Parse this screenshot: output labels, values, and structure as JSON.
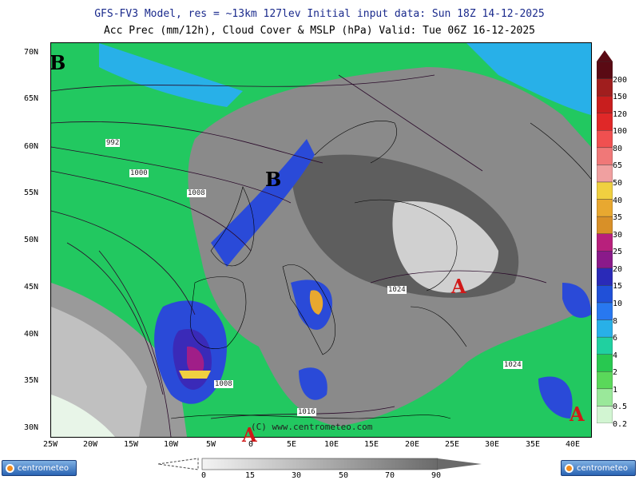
{
  "header": {
    "line1": "GFS-FV3 Model, res = ~13km 127lev   Initial input data: Sun 18Z 14-12-2025",
    "line2": "Acc Prec (mm/12h), Cloud Cover & MSLP (hPa)  Valid: Tue 06Z 16-12-2025"
  },
  "lat_labels": [
    "70N",
    "65N",
    "60N",
    "55N",
    "50N",
    "45N",
    "40N",
    "35N",
    "30N"
  ],
  "lon_labels": [
    "25W",
    "20W",
    "15W",
    "10W",
    "5W",
    "0",
    "5E",
    "10E",
    "15E",
    "20E",
    "25E",
    "30E",
    "35E",
    "40E"
  ],
  "precip_scale": {
    "labels": [
      "200",
      "150",
      "120",
      "100",
      "80",
      "65",
      "50",
      "40",
      "35",
      "30",
      "25",
      "20",
      "15",
      "10",
      "8",
      "6",
      "4",
      "2",
      "1",
      "0.5",
      "0.2"
    ],
    "colors": [
      "#5a0a14",
      "#a01e1e",
      "#c81e1e",
      "#e02828",
      "#f05050",
      "#f07878",
      "#f0a0a0",
      "#f0d040",
      "#e8a830",
      "#d89028",
      "#b8207c",
      "#8a1a8a",
      "#2a2ab8",
      "#2050d8",
      "#2878f0",
      "#28b0e8",
      "#20d0a0",
      "#28c850",
      "#5ad85a",
      "#9ae89a",
      "#d2f5d2"
    ]
  },
  "cloud_scale": {
    "labels": [
      "0",
      "15",
      "30",
      "50",
      "70",
      "90"
    ]
  },
  "pressure_centers": [
    {
      "letter": "B",
      "color": "#1a2a8c"
    },
    {
      "letter": "B",
      "color": "#1a2a8c"
    },
    {
      "letter": "A",
      "color": "#d01818"
    },
    {
      "letter": "A",
      "color": "#d01818"
    },
    {
      "letter": "A",
      "color": "#d01818"
    }
  ],
  "isobar_labels": [
    "992",
    "1000",
    "1008",
    "1008",
    "1016",
    "1024",
    "1024"
  ],
  "copyright": "(C) www.centrometeo.com",
  "logo_text": "centrometeo"
}
